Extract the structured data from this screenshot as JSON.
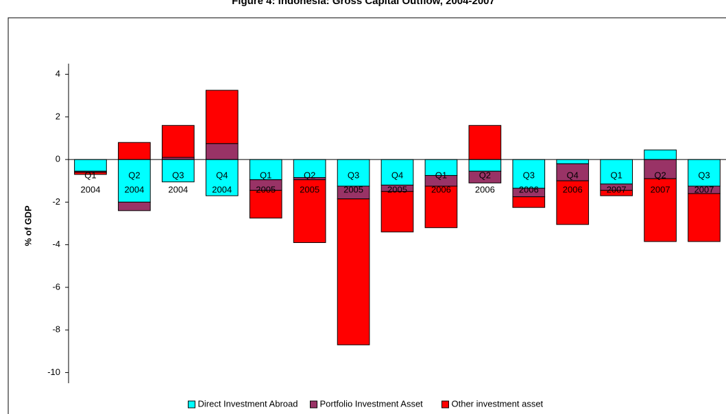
{
  "chart_data": {
    "type": "stacked-bar",
    "title": "Figure 4: Indonesia: Gross Capital Outflow, 2004-2007",
    "y_label": "% of GDP",
    "categories": [
      [
        "Q1",
        "2004"
      ],
      [
        "Q2",
        "2004"
      ],
      [
        "Q3",
        "2004"
      ],
      [
        "Q4",
        "2004"
      ],
      [
        "Q1",
        "2005"
      ],
      [
        "Q2",
        "2005"
      ],
      [
        "Q3",
        "2005"
      ],
      [
        "Q4",
        "2005"
      ],
      [
        "Q1",
        "2006"
      ],
      [
        "Q2",
        "2006"
      ],
      [
        "Q3",
        "2006"
      ],
      [
        "Q4",
        "2006"
      ],
      [
        "Q1",
        "2007"
      ],
      [
        "Q2",
        "2007"
      ],
      [
        "Q3",
        "2007"
      ]
    ],
    "series": [
      {
        "name": "Direct Investment Abroad",
        "color": "#00ffff",
        "values": [
          -0.55,
          -2.0,
          -1.05,
          -1.7,
          -0.95,
          -0.85,
          -1.25,
          -1.2,
          -0.75,
          -0.55,
          -1.35,
          -0.2,
          -1.15,
          0.45,
          -1.25
        ]
      },
      {
        "name": "Portfolio Investment Asset",
        "color": "#993366",
        "values": [
          -0.05,
          -0.4,
          0.1,
          0.75,
          -0.5,
          -0.1,
          -0.6,
          -0.3,
          -0.5,
          -0.55,
          -0.4,
          -0.8,
          -0.3,
          -0.9,
          -0.35
        ]
      },
      {
        "name": "Other investment asset",
        "color": "#ff0000",
        "values": [
          -0.1,
          0.8,
          1.5,
          2.5,
          -1.3,
          -2.95,
          -6.85,
          -1.9,
          -1.95,
          1.6,
          -0.5,
          -2.05,
          -0.25,
          -2.95,
          -2.25
        ]
      }
    ],
    "ylim": [
      -10.5,
      4.5
    ],
    "yticks": [
      -10,
      -8,
      -6,
      -4,
      -2,
      0,
      2,
      4
    ],
    "legend": "bottom"
  }
}
